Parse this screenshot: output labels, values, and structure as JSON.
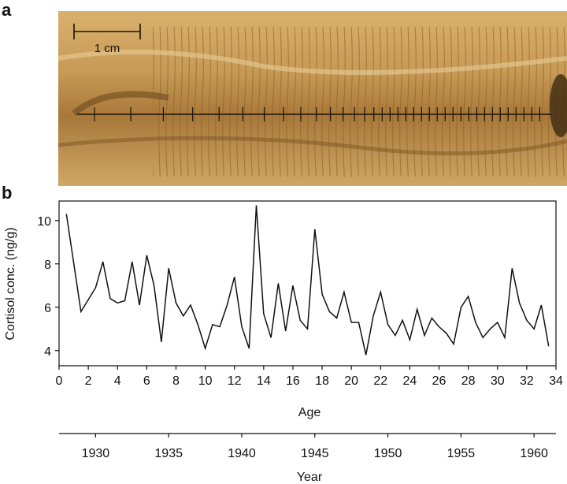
{
  "panels": {
    "a": {
      "label": "a",
      "scale_bar_label": "1 cm"
    },
    "b": {
      "label": "b"
    }
  },
  "colors": {
    "photo_background": "#c9a062",
    "photo_dark": "#7a5622",
    "photo_light": "#e3c48c",
    "line": "#111111"
  },
  "chart_data": {
    "type": "line",
    "ylabel": "Cortisol conc. (ng/g)",
    "xlabel": "Age",
    "secondary_xlabel": "Year",
    "xlim": [
      0,
      34
    ],
    "ylim": [
      3.3,
      10.9
    ],
    "x_ticks": [
      0,
      2,
      4,
      6,
      8,
      10,
      12,
      14,
      16,
      18,
      20,
      22,
      24,
      26,
      28,
      30,
      32,
      34
    ],
    "y_ticks": [
      4,
      6,
      8,
      10
    ],
    "year_axis": {
      "ticks": [
        "1930",
        "1935",
        "1940",
        "1945",
        "1950",
        "1955",
        "1960"
      ],
      "tick_ages": [
        2.5,
        7.5,
        12.5,
        17.5,
        22.5,
        27.5,
        32.5
      ]
    },
    "grid": false,
    "series": [
      {
        "x": [
          0.5,
          1.5,
          2.5,
          3.0,
          3.5,
          4.0,
          4.5,
          5.0,
          5.5,
          6.0,
          6.5,
          7.0,
          7.5,
          8.0,
          8.5,
          9.0,
          9.5,
          10.0,
          10.5,
          11.0,
          11.5,
          12.0,
          12.5,
          13.0,
          13.5,
          14.0,
          14.5,
          15.0,
          15.5,
          16.0,
          16.5,
          17.0,
          17.5,
          18.0,
          18.5,
          19.0,
          19.5,
          20.0,
          20.5,
          21.0,
          21.5,
          22.0,
          22.5,
          23.0,
          23.5,
          24.0,
          24.5,
          25.0,
          25.5,
          26.0,
          26.5,
          27.0,
          27.5,
          28.0,
          28.5,
          29.0,
          29.5,
          30.0,
          30.5,
          31.0,
          31.5,
          32.0,
          32.5,
          33.0,
          33.5
        ],
        "y": [
          10.3,
          5.8,
          6.9,
          8.1,
          6.4,
          6.2,
          6.3,
          8.1,
          6.1,
          8.4,
          7.0,
          4.4,
          7.8,
          6.2,
          5.6,
          6.1,
          5.2,
          4.1,
          5.2,
          5.1,
          6.1,
          7.4,
          5.1,
          4.1,
          10.7,
          5.7,
          4.6,
          7.1,
          4.9,
          7.0,
          5.4,
          5.0,
          9.6,
          6.6,
          5.8,
          5.5,
          6.7,
          5.3,
          5.3,
          3.8,
          5.6,
          6.7,
          5.2,
          4.7,
          5.4,
          4.5,
          5.9,
          4.7,
          5.5,
          5.1,
          4.8,
          4.3,
          6.0,
          6.5,
          5.3,
          4.6,
          5.0,
          5.3,
          4.6,
          7.8,
          6.2,
          5.4,
          5.0,
          6.1,
          4.2
        ]
      }
    ]
  }
}
